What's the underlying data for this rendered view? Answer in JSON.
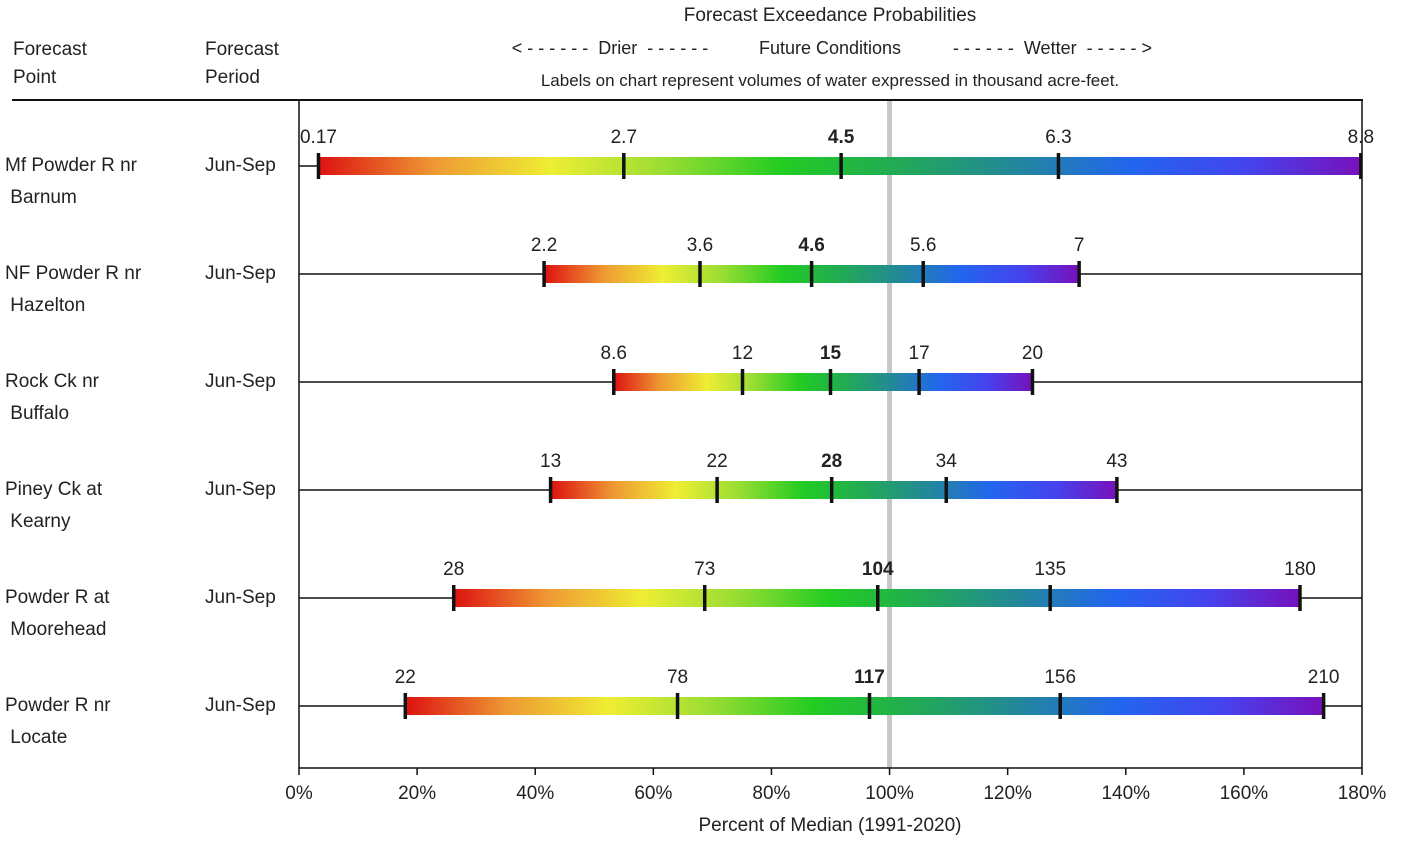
{
  "header": {
    "col1": [
      "Forecast",
      "Point"
    ],
    "col2": [
      "Forecast",
      "Period"
    ],
    "title": "Forecast Exceedance Probabilities",
    "direction_left": "< - - - - - -  Drier  - - - - - -",
    "direction_mid": "Future Conditions",
    "direction_right": "- - - - - -  Wetter  - - - - - >",
    "note": "Labels on chart represent volumes of water expressed in thousand acre-feet."
  },
  "chart_data": {
    "type": "bar",
    "xlabel": "Percent of Median (1991-2020)",
    "xlim": [
      0,
      180
    ],
    "xticks": [
      "0%",
      "20%",
      "40%",
      "60%",
      "80%",
      "100%",
      "120%",
      "140%",
      "160%",
      "180%"
    ],
    "median_reference": 100,
    "colors": {
      "gradient": [
        "#dd1111",
        "#ee9933",
        "#eeee33",
        "#99dd33",
        "#22cc22",
        "#22aa55",
        "#228899",
        "#2266ee",
        "#4444ee",
        "#7711bb"
      ],
      "median_line": "#c8c8c8",
      "tick": "#111111"
    },
    "rows": [
      {
        "name": [
          "Mf Powder R nr",
          " Barnum"
        ],
        "period": "Jun-Sep",
        "points": [
          3.3,
          55.0,
          91.8,
          128.6,
          179.8
        ],
        "labels": [
          "0.17",
          "2.7",
          "4.5",
          "6.3",
          "8.8"
        ]
      },
      {
        "name": [
          "NF Powder R nr",
          " Hazelton"
        ],
        "period": "Jun-Sep",
        "points": [
          41.5,
          67.9,
          86.8,
          105.7,
          132.1
        ],
        "labels": [
          "2.2",
          "3.6",
          "4.6",
          "5.6",
          "7"
        ]
      },
      {
        "name": [
          "Rock Ck nr",
          " Buffalo"
        ],
        "period": "Jun-Sep",
        "points": [
          53.3,
          75.1,
          90.0,
          105.0,
          124.2
        ],
        "labels": [
          "8.6",
          "12",
          "15",
          "17",
          "20"
        ]
      },
      {
        "name": [
          "Piney Ck at",
          " Kearny"
        ],
        "period": "Jun-Sep",
        "points": [
          42.6,
          70.8,
          90.2,
          109.6,
          138.5
        ],
        "labels": [
          "13",
          "22",
          "28",
          "34",
          "43"
        ]
      },
      {
        "name": [
          "Powder R at",
          " Moorehead"
        ],
        "period": "Jun-Sep",
        "points": [
          26.2,
          68.7,
          98.0,
          127.2,
          169.5
        ],
        "labels": [
          "28",
          "73",
          "104",
          "135",
          "180"
        ]
      },
      {
        "name": [
          "Powder R nr",
          " Locate"
        ],
        "period": "Jun-Sep",
        "points": [
          18.0,
          64.1,
          96.6,
          128.9,
          173.5
        ],
        "labels": [
          "22",
          "78",
          "117",
          "156",
          "210"
        ]
      }
    ]
  }
}
